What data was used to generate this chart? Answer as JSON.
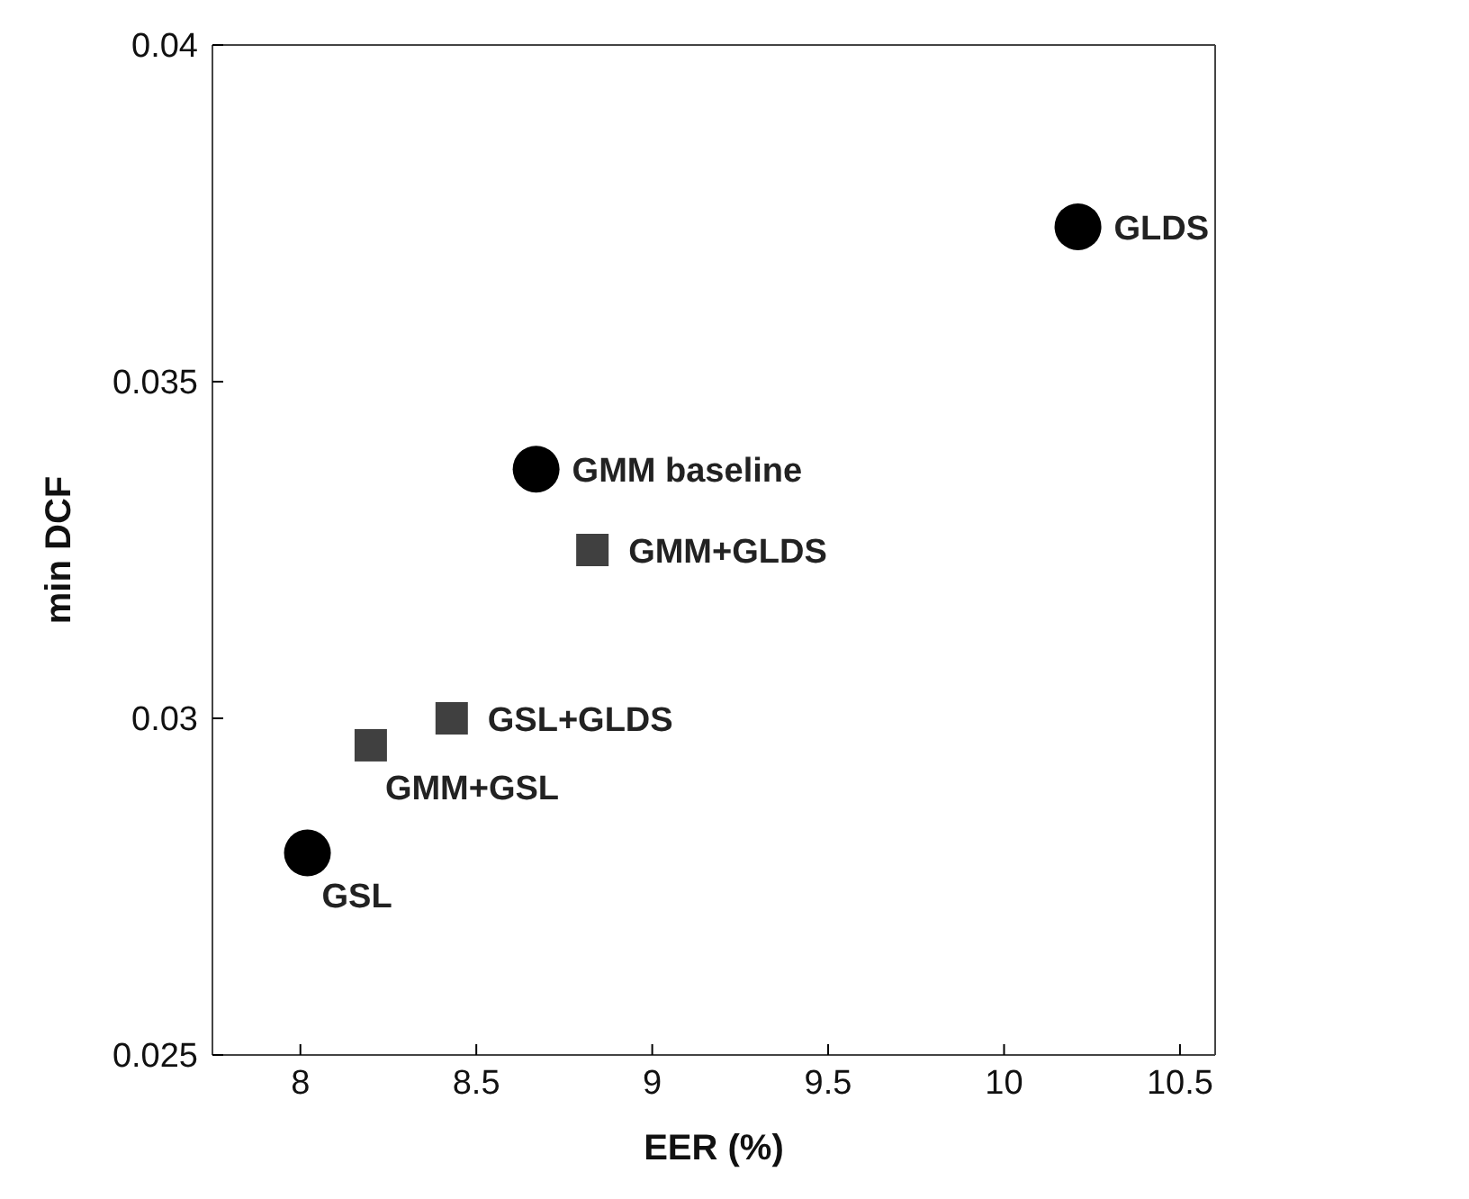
{
  "chart_data": {
    "type": "scatter",
    "xlabel": "EER (%)",
    "ylabel": "min DCF",
    "xlim": [
      7.75,
      10.6
    ],
    "xticks": [
      8,
      8.5,
      9,
      9.5,
      10,
      10.5
    ],
    "ylim": [
      0.025,
      0.04
    ],
    "yticks": [
      0.025,
      0.03,
      0.035,
      0.04
    ],
    "series": [
      {
        "color": "#000000",
        "marker": "circle",
        "x": [
          10.21,
          8.67,
          8.02
        ],
        "values": [
          0.0373,
          0.0337,
          0.028
        ],
        "value_labels": [
          "GLDS",
          "GMM baseline",
          "GSL"
        ]
      },
      {
        "color": "#404040",
        "marker": "square",
        "x": [
          8.83,
          8.43,
          8.2
        ],
        "values": [
          0.0325,
          0.03,
          0.0296
        ],
        "value_labels": [
          "GMM+GLDS",
          "GSL+GLDS",
          "GMM+GSL"
        ]
      }
    ]
  }
}
